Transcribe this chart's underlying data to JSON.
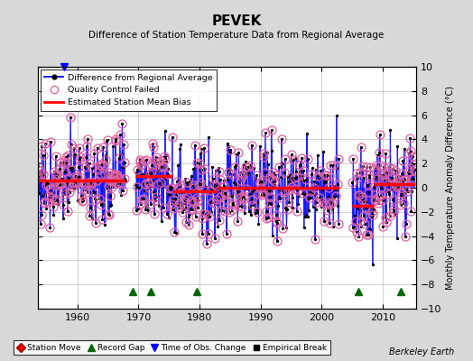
{
  "title": "PEVEK",
  "subtitle": "Difference of Station Temperature Data from Regional Average",
  "ylabel": "Monthly Temperature Anomaly Difference (°C)",
  "credit": "Berkeley Earth",
  "xlim": [
    1953.5,
    2015.5
  ],
  "ylim": [
    -10,
    10
  ],
  "yticks": [
    -10,
    -8,
    -6,
    -4,
    -2,
    0,
    2,
    4,
    6,
    8,
    10
  ],
  "xticks": [
    1960,
    1970,
    1980,
    1990,
    2000,
    2010
  ],
  "bg_color": "#d8d8d8",
  "plot_bg_color": "#ffffff",
  "grid_color": "#bbbbbb",
  "data_periods": [
    {
      "start": 1953.5,
      "end": 1967.9
    },
    {
      "start": 1969.5,
      "end": 2002.9
    },
    {
      "start": 2005.0,
      "end": 2015.3
    }
  ],
  "bias_segments": [
    {
      "start": 1953.5,
      "end": 1967.9,
      "bias": 0.6
    },
    {
      "start": 1969.5,
      "end": 1975.5,
      "bias": 1.0
    },
    {
      "start": 1975.5,
      "end": 1983.0,
      "bias": -0.3
    },
    {
      "start": 1983.0,
      "end": 2002.9,
      "bias": 0.0
    },
    {
      "start": 2005.0,
      "end": 2008.5,
      "bias": -1.5
    },
    {
      "start": 2008.5,
      "end": 2015.3,
      "bias": 0.3
    }
  ],
  "record_gaps": [
    1969.0,
    1972.0,
    1979.5,
    2006.0,
    2013.0
  ],
  "obs_changes": [
    1957.8
  ],
  "qc_rate_early": 0.75,
  "qc_rate_mid": 0.55,
  "qc_rate_late": 0.7,
  "noise_scale": 1.8,
  "seed": 77
}
